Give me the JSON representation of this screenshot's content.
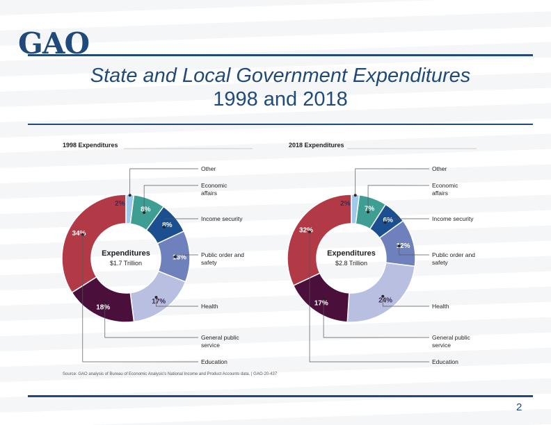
{
  "logo": {
    "text": "GAO"
  },
  "title": {
    "line1": "State and Local Government Expenditures",
    "line2": "1998 and 2018"
  },
  "page_number": "2",
  "colors": {
    "brand": "#1f4a7a",
    "other": "#9fc8ea",
    "economic_affairs": "#3f9e94",
    "income_security": "#1b4f8f",
    "public_order": "#6f81bd",
    "health": "#b8bfe0",
    "general_public_service": "#4b0f3b",
    "education": "#b23a47"
  },
  "chart_data": [
    {
      "type": "donut",
      "heading": "1998 Expenditures",
      "center_title": "Expenditures",
      "center_value": "$1.7 Trillion",
      "categories": [
        "Other",
        "Economic affairs",
        "Income security",
        "Public order and safety",
        "Health",
        "General public service",
        "Education"
      ],
      "values": [
        2,
        8,
        8,
        13,
        17,
        18,
        34
      ],
      "value_labels": [
        "2%",
        "8%",
        "8%",
        "13%",
        "17%",
        "18%",
        "34%"
      ]
    },
    {
      "type": "donut",
      "heading": "2018 Expenditures",
      "center_title": "Expenditures",
      "center_value": "$2.8 Trillion",
      "categories": [
        "Other",
        "Economic affairs",
        "Income security",
        "Public order and safety",
        "Health",
        "General public service",
        "Education"
      ],
      "values": [
        2,
        7,
        6,
        12,
        24,
        17,
        32
      ],
      "value_labels": [
        "2%",
        "7%",
        "6%",
        "12%",
        "24%",
        "17%",
        "32%"
      ]
    }
  ],
  "legend_labels": {
    "other": "Other",
    "economic_affairs": [
      "Economic",
      "affairs"
    ],
    "income_security": "Income security",
    "public_order": [
      "Public order and",
      "safety"
    ],
    "health": "Health",
    "general_public_service": [
      "General public",
      "service"
    ],
    "education": "Education"
  },
  "source_note": "Source: GAO analysis of Bureau of Economic Analysis's National Income and Product Accounts data. | GAO-20-437"
}
